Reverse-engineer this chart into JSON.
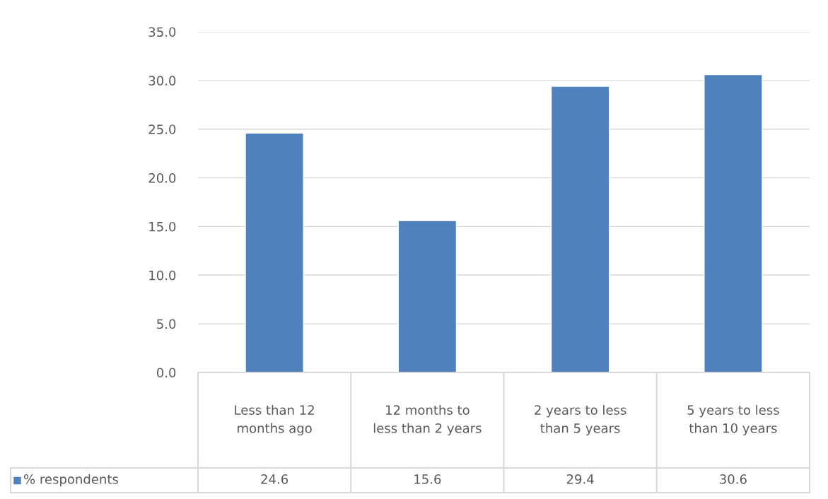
{
  "chart_data": {
    "type": "bar",
    "categories": [
      "Less than 12 months ago",
      "12 months to less than 2 years",
      "2 years to less than 5 years",
      "5 years to less than 10 years"
    ],
    "series": [
      {
        "name": "% respondents",
        "color": "#4f81bd",
        "values": [
          24.6,
          15.6,
          29.4,
          30.6
        ]
      }
    ],
    "ylim": [
      0,
      35
    ],
    "yticks": [
      {
        "value": 0,
        "label": "0.0"
      },
      {
        "value": 5,
        "label": "5.0"
      },
      {
        "value": 10,
        "label": "10.0"
      },
      {
        "value": 15,
        "label": "15.0"
      },
      {
        "value": 20,
        "label": "20.0"
      },
      {
        "value": 25,
        "label": "25.0"
      },
      {
        "value": 30,
        "label": "30.0"
      },
      {
        "value": 35,
        "label": "35.0"
      }
    ],
    "grid": "y",
    "legend": "bottom",
    "data_labels": true
  }
}
